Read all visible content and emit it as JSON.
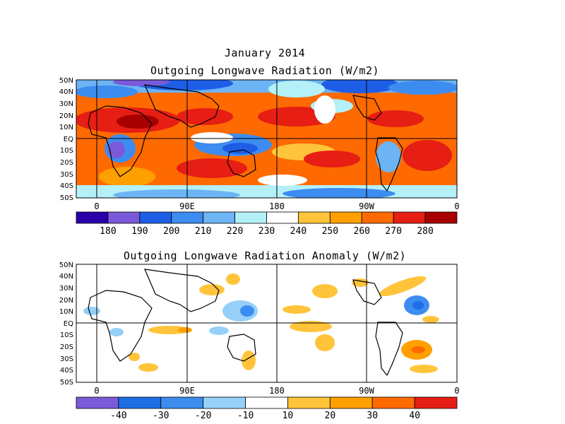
{
  "header": {
    "title_line1": "January 2014",
    "title_line2": "Outgoing Longwave Radiation (W/m2)"
  },
  "anomaly": {
    "title": "Outgoing Longwave Radiation Anomaly (W/m2)"
  },
  "axes": {
    "lat_labels": [
      "50N",
      "40N",
      "30N",
      "20N",
      "10N",
      "EQ",
      "10S",
      "20S",
      "30S",
      "40S",
      "50S"
    ],
    "lon_labels": [
      "0",
      "90E",
      "180",
      "90W",
      "0"
    ]
  },
  "colorbar_top": {
    "colors": [
      "#2a00a8",
      "#7a5ad8",
      "#1e5ee6",
      "#3d8cf0",
      "#6cb4f4",
      "#b4f0f8",
      "#ffffff",
      "#ffc43a",
      "#ffa000",
      "#ff6a00",
      "#e61e14",
      "#a80000"
    ],
    "labels": [
      "180",
      "190",
      "200",
      "210",
      "220",
      "230",
      "240",
      "250",
      "260",
      "270",
      "280"
    ]
  },
  "colorbar_bottom": {
    "colors": [
      "#7a5ad8",
      "#1e6ee6",
      "#3d8cf0",
      "#96d0f8",
      "#ffffff",
      "#ffc43a",
      "#ffa000",
      "#ff6a00",
      "#e61e14"
    ],
    "labels": [
      "-40",
      "-30",
      "-20",
      "-10",
      "10",
      "20",
      "30",
      "40"
    ]
  }
}
